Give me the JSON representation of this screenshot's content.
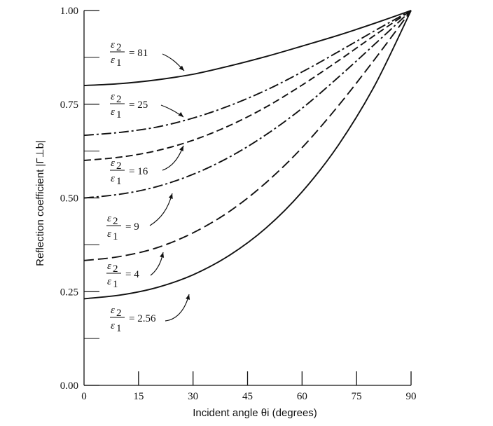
{
  "chart_data": {
    "type": "line",
    "xlabel": "Incident angle θi (degrees)",
    "ylabel": "Reflection coefficient |Γ⊥b|",
    "xlim": [
      0,
      90
    ],
    "ylim": [
      0,
      1
    ],
    "x_ticks": [
      0,
      15,
      30,
      45,
      60,
      75,
      90
    ],
    "x_tick_labels": [
      "0",
      "15",
      "30",
      "45",
      "60",
      "75",
      "90"
    ],
    "y_ticks": [
      0,
      0.25,
      0.5,
      0.75,
      1.0
    ],
    "y_tick_labels": [
      "0.00",
      "0.25",
      "0.50",
      "0.75",
      "1.00"
    ],
    "grid": false,
    "legend": "none (inline annotations)",
    "series": [
      {
        "name": "ε2/ε1 = 81",
        "ratio": "81",
        "style": "solid",
        "x": [
          0,
          10,
          20,
          30,
          40,
          50,
          60,
          70,
          80,
          90
        ],
        "values": [
          0.8,
          0.805,
          0.815,
          0.83,
          0.852,
          0.877,
          0.905,
          0.934,
          0.966,
          1.0
        ]
      },
      {
        "name": "ε2/ε1 = 25",
        "ratio": "25",
        "style": "dash-dot",
        "x": [
          0,
          10,
          20,
          30,
          40,
          50,
          60,
          70,
          80,
          90
        ],
        "values": [
          0.667,
          0.675,
          0.689,
          0.713,
          0.746,
          0.787,
          0.836,
          0.89,
          0.946,
          1.0
        ]
      },
      {
        "name": "ε2/ε1 = 16",
        "ratio": "16",
        "style": "dashed",
        "x": [
          0,
          10,
          20,
          30,
          40,
          50,
          60,
          70,
          80,
          90
        ],
        "values": [
          0.6,
          0.609,
          0.626,
          0.654,
          0.693,
          0.742,
          0.801,
          0.866,
          0.934,
          1.0
        ]
      },
      {
        "name": "ε2/ε1 = 9",
        "ratio": "9",
        "style": "dash-dot",
        "x": [
          0,
          10,
          20,
          30,
          40,
          50,
          60,
          70,
          80,
          90
        ],
        "values": [
          0.5,
          0.51,
          0.53,
          0.563,
          0.609,
          0.668,
          0.739,
          0.822,
          0.91,
          1.0
        ]
      },
      {
        "name": "ε2/ε1 = 4",
        "ratio": "4",
        "style": "long-dash",
        "x": [
          0,
          10,
          20,
          30,
          40,
          50,
          60,
          70,
          80,
          90
        ],
        "values": [
          0.333,
          0.344,
          0.367,
          0.407,
          0.464,
          0.54,
          0.634,
          0.746,
          0.87,
          1.0
        ]
      },
      {
        "name": "ε2/ε1 = 2.56",
        "ratio": "2.56",
        "style": "solid",
        "x": [
          0,
          10,
          20,
          30,
          40,
          50,
          60,
          70,
          80,
          90
        ],
        "values": [
          0.231,
          0.241,
          0.261,
          0.295,
          0.347,
          0.419,
          0.516,
          0.641,
          0.8,
          1.0
        ]
      }
    ]
  }
}
